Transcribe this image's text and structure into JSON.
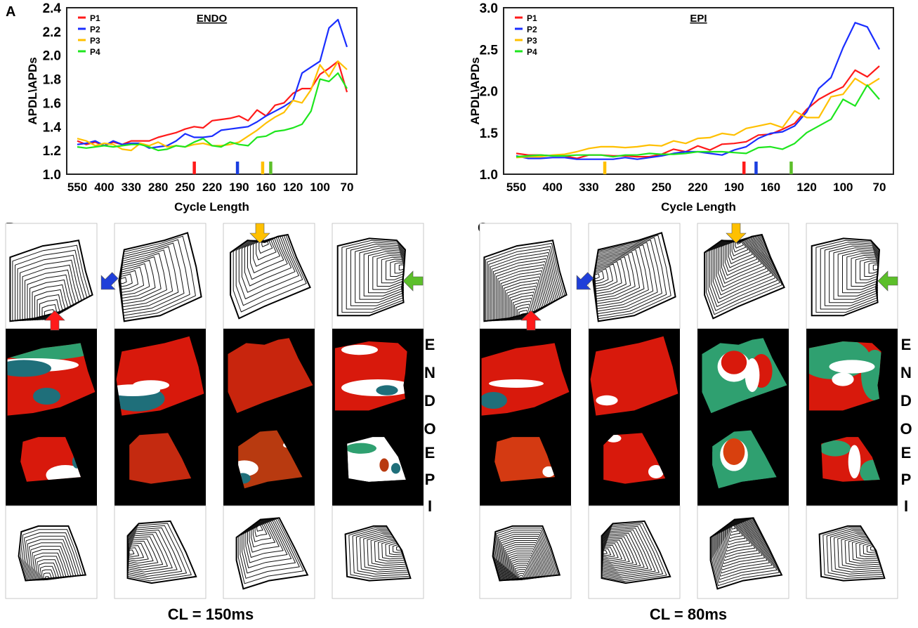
{
  "panel_labels": {
    "a": "A",
    "b": "B",
    "c": "C"
  },
  "chart_data": [
    {
      "type": "line",
      "title": "ENDO",
      "xlabel": "Cycle Length",
      "ylabel": "APDL\\APDs",
      "x_tick_labels": [
        "550",
        "400",
        "330",
        "280",
        "250",
        "220",
        "190",
        "160",
        "120",
        "100",
        "70"
      ],
      "y_ticks": [
        "1.0",
        "1.2",
        "1.4",
        "1.6",
        "1.8",
        "2.0",
        "2.2",
        "2.4"
      ],
      "ylim": [
        1.0,
        2.4
      ],
      "legend": "top-left",
      "series": [
        {
          "name": "P1",
          "color": "#ff1a1a",
          "values": [
            1.28,
            1.25,
            1.27,
            1.24,
            1.27,
            1.25,
            1.28,
            1.28,
            1.28,
            1.31,
            1.33,
            1.35,
            1.38,
            1.4,
            1.39,
            1.45,
            1.46,
            1.47,
            1.49,
            1.45,
            1.54,
            1.49,
            1.58,
            1.6,
            1.68,
            1.72,
            1.72,
            1.84,
            1.89,
            1.95,
            1.69
          ]
        },
        {
          "name": "P2",
          "color": "#1a2eff",
          "values": [
            1.25,
            1.26,
            1.28,
            1.24,
            1.28,
            1.25,
            1.26,
            1.26,
            1.22,
            1.23,
            1.24,
            1.28,
            1.34,
            1.31,
            1.31,
            1.32,
            1.37,
            1.38,
            1.39,
            1.4,
            1.44,
            1.49,
            1.53,
            1.57,
            1.62,
            1.85,
            1.9,
            1.95,
            2.23,
            2.3,
            2.07
          ]
        },
        {
          "name": "P3",
          "color": "#ffc000",
          "values": [
            1.3,
            1.28,
            1.24,
            1.26,
            1.25,
            1.21,
            1.2,
            1.26,
            1.24,
            1.27,
            1.23,
            1.24,
            1.23,
            1.25,
            1.26,
            1.24,
            1.24,
            1.25,
            1.27,
            1.32,
            1.37,
            1.43,
            1.48,
            1.52,
            1.62,
            1.6,
            1.71,
            1.92,
            1.82,
            1.95,
            1.88
          ]
        },
        {
          "name": "P4",
          "color": "#1ee61e",
          "values": [
            1.23,
            1.22,
            1.23,
            1.24,
            1.23,
            1.24,
            1.25,
            1.25,
            1.23,
            1.2,
            1.21,
            1.24,
            1.23,
            1.27,
            1.3,
            1.24,
            1.23,
            1.27,
            1.25,
            1.24,
            1.31,
            1.32,
            1.36,
            1.37,
            1.39,
            1.42,
            1.53,
            1.8,
            1.78,
            1.85,
            1.72
          ]
        }
      ],
      "markers": [
        {
          "series": "P1",
          "color": "#ff1a1a",
          "x_index": 13.0
        },
        {
          "series": "P2",
          "color": "#1a3ee0",
          "x_index": 17.8
        },
        {
          "series": "P3",
          "color": "#ffc000",
          "x_index": 20.6
        },
        {
          "series": "P4",
          "color": "#5cbf2a",
          "x_index": 21.5
        }
      ]
    },
    {
      "type": "line",
      "title": "EPI",
      "xlabel": "Cycle Length",
      "ylabel": "APDL\\APDs",
      "x_tick_labels": [
        "550",
        "400",
        "330",
        "280",
        "250",
        "220",
        "190",
        "160",
        "120",
        "100",
        "70"
      ],
      "y_ticks": [
        "1.0",
        "1.5",
        "2.0",
        "2.5",
        "3.0"
      ],
      "ylim": [
        1.0,
        3.0
      ],
      "legend": "top-left",
      "series": [
        {
          "name": "P1",
          "color": "#ff1a1a",
          "values": [
            1.25,
            1.23,
            1.23,
            1.22,
            1.22,
            1.19,
            1.23,
            1.23,
            1.22,
            1.22,
            1.21,
            1.21,
            1.24,
            1.3,
            1.27,
            1.34,
            1.29,
            1.36,
            1.37,
            1.39,
            1.47,
            1.48,
            1.54,
            1.61,
            1.78,
            1.9,
            1.98,
            2.05,
            2.25,
            2.17,
            2.3
          ]
        },
        {
          "name": "P2",
          "color": "#1a2eff",
          "values": [
            1.22,
            1.19,
            1.19,
            1.2,
            1.2,
            1.18,
            1.18,
            1.18,
            1.18,
            1.2,
            1.18,
            1.2,
            1.22,
            1.25,
            1.27,
            1.27,
            1.25,
            1.23,
            1.29,
            1.33,
            1.43,
            1.49,
            1.51,
            1.58,
            1.75,
            2.03,
            2.16,
            2.52,
            2.82,
            2.77,
            2.5
          ]
        },
        {
          "name": "P3",
          "color": "#ffc000",
          "values": [
            1.2,
            1.21,
            1.21,
            1.23,
            1.24,
            1.27,
            1.31,
            1.33,
            1.33,
            1.32,
            1.33,
            1.35,
            1.34,
            1.4,
            1.37,
            1.43,
            1.44,
            1.49,
            1.47,
            1.55,
            1.58,
            1.61,
            1.56,
            1.76,
            1.68,
            1.68,
            1.93,
            1.96,
            2.15,
            2.06,
            2.15
          ]
        },
        {
          "name": "P4",
          "color": "#1ee61e",
          "values": [
            1.21,
            1.22,
            1.23,
            1.22,
            1.22,
            1.23,
            1.23,
            1.23,
            1.21,
            1.23,
            1.23,
            1.25,
            1.24,
            1.24,
            1.25,
            1.27,
            1.27,
            1.27,
            1.26,
            1.25,
            1.32,
            1.33,
            1.3,
            1.37,
            1.5,
            1.58,
            1.66,
            1.9,
            1.82,
            2.07,
            1.9
          ]
        }
      ],
      "markers": [
        {
          "series": "P3",
          "color": "#ffc000",
          "x_index": 7.3
        },
        {
          "series": "P1",
          "color": "#ff1a1a",
          "x_index": 18.8
        },
        {
          "series": "P2",
          "color": "#1a3ee0",
          "x_index": 19.8
        },
        {
          "series": "P4",
          "color": "#5cbf2a",
          "x_index": 22.7
        }
      ]
    }
  ],
  "maps": {
    "layer_letters_endo": [
      "E",
      "N",
      "D",
      "O"
    ],
    "layer_letters_epi": [
      "E",
      "P",
      "I"
    ],
    "b_caption": "CL = 150ms",
    "c_caption": "CL = 80ms",
    "arrow_colors": {
      "P1": "#ff1a1a",
      "P2": "#1f3fd9",
      "P3": "#ffc000",
      "P4": "#5cbf2a"
    }
  }
}
